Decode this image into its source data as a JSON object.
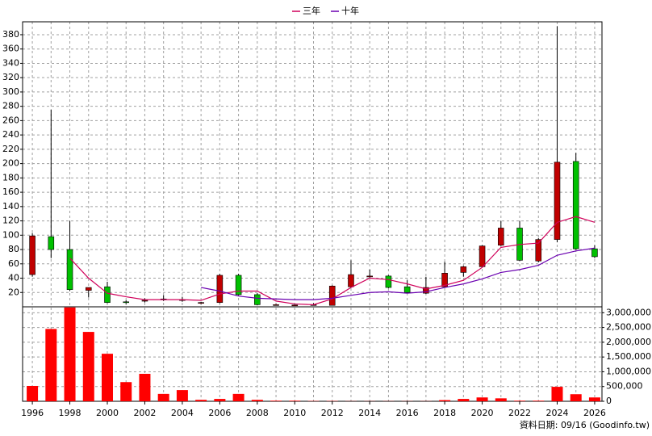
{
  "chart_data": {
    "type": "candlestick",
    "legend": "top",
    "x": [
      1996,
      1997,
      1998,
      1999,
      2000,
      2001,
      2002,
      2003,
      2004,
      2005,
      2006,
      2007,
      2008,
      2009,
      2010,
      2011,
      2012,
      2013,
      2014,
      2015,
      2016,
      2017,
      2018,
      2019,
      2020,
      2021,
      2022,
      2023,
      2024,
      2025,
      2026
    ],
    "xlim": [
      1995.48,
      2026.39
    ],
    "xticks": [
      1996,
      1998,
      2000,
      2002,
      2004,
      2006,
      2008,
      2010,
      2012,
      2014,
      2016,
      2018,
      2020,
      2022,
      2024,
      2026
    ],
    "open": [
      45,
      98,
      80,
      23,
      28,
      7,
      9,
      11,
      10,
      6,
      6,
      44,
      17,
      3,
      2.5,
      3,
      2,
      28,
      42,
      43,
      28,
      19,
      28,
      48,
      56,
      86,
      110,
      64,
      94,
      203,
      81
    ],
    "high": [
      103,
      275,
      120,
      27,
      35,
      9,
      12,
      16,
      14,
      7,
      46,
      46,
      19,
      4,
      3,
      5,
      30,
      65,
      52,
      44,
      37,
      42,
      63,
      57,
      86,
      120,
      120,
      96,
      392,
      215,
      86
    ],
    "low": [
      42,
      68,
      22,
      13,
      5,
      4,
      6,
      8,
      7,
      4,
      5,
      16,
      2,
      2,
      2,
      2,
      2,
      27,
      40,
      26,
      19,
      18,
      27,
      42,
      55,
      85,
      64,
      62,
      90,
      80,
      68
    ],
    "close": [
      99,
      80,
      24,
      27,
      6,
      6,
      9,
      11,
      10,
      6,
      44,
      17,
      3,
      3,
      2.5,
      3,
      29,
      45,
      43,
      27,
      20,
      27,
      47,
      56,
      85,
      110,
      65,
      94,
      202,
      81,
      70
    ],
    "up_color": "#c00000",
    "down_color": "#00c000",
    "series": [
      {
        "name": "三年",
        "color": "#d0005a",
        "values": [
          null,
          null,
          68,
          40,
          19,
          14,
          10,
          10,
          10,
          9,
          18,
          22,
          22,
          8,
          4,
          3,
          11,
          27,
          40,
          38,
          32,
          25,
          30,
          37,
          55,
          83,
          87,
          89,
          118,
          126,
          118
        ]
      },
      {
        "name": "十年",
        "color": "#6a00b0",
        "values": [
          null,
          null,
          null,
          null,
          null,
          null,
          null,
          null,
          null,
          27,
          22,
          15,
          12,
          11,
          10,
          10,
          12,
          16,
          20,
          21,
          19,
          21,
          27,
          32,
          39,
          48,
          52,
          58,
          72,
          78,
          82
        ]
      }
    ],
    "volume": {
      "color": "#ff0000",
      "values": [
        520000,
        2450000,
        3180000,
        2350000,
        1610000,
        650000,
        930000,
        250000,
        380000,
        50000,
        80000,
        250000,
        50000,
        20000,
        20000,
        10000,
        10000,
        5000,
        5000,
        5000,
        5000,
        5000,
        40000,
        80000,
        130000,
        100000,
        20000,
        20000,
        490000,
        240000,
        130000
      ]
    },
    "ylim": [
      0,
      398
    ],
    "yticks": [
      20,
      40,
      60,
      80,
      100,
      120,
      140,
      160,
      180,
      200,
      220,
      240,
      260,
      280,
      300,
      320,
      340,
      360,
      380
    ],
    "y2lim": [
      0,
      3200000
    ],
    "y2ticks": [
      {
        "value": 0,
        "label": "0"
      },
      {
        "value": 500000,
        "label": "500,000"
      },
      {
        "value": 1000000,
        "label": "1,000,000"
      },
      {
        "value": 1500000,
        "label": "1,500,000"
      },
      {
        "value": 2000000,
        "label": "2,000,000"
      },
      {
        "value": 2500000,
        "label": "2,500,000"
      },
      {
        "value": 3000000,
        "label": "3,000,000"
      }
    ],
    "grid": true,
    "footnote": "資料日期: 09/16  (Goodinfo.tw)"
  }
}
